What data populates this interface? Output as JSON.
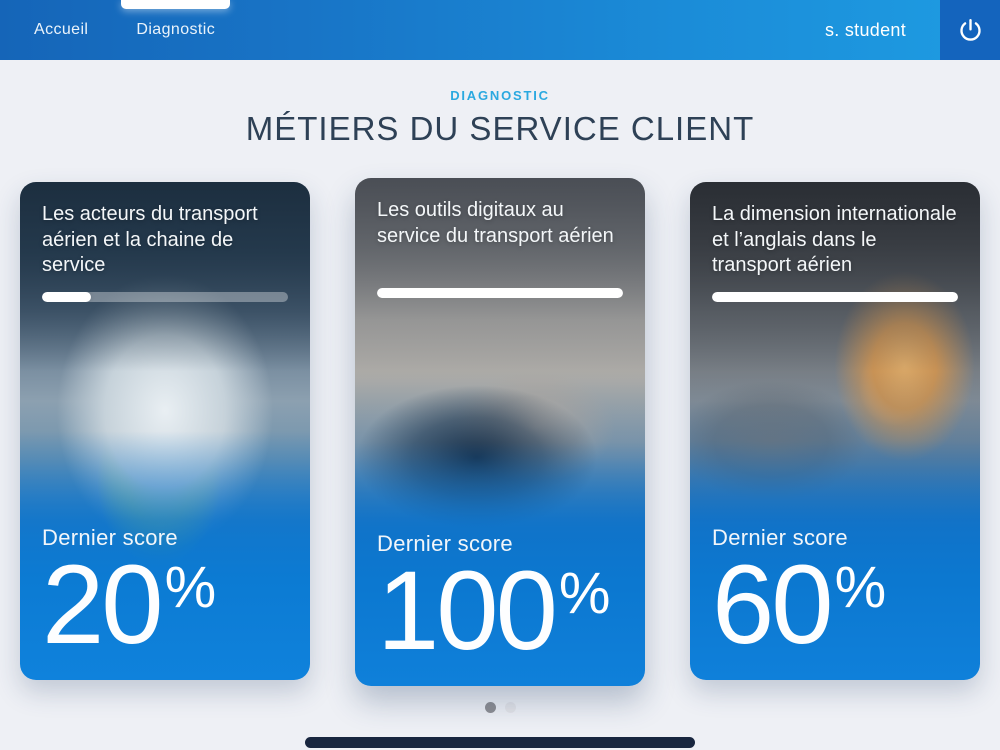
{
  "header": {
    "tabs": [
      {
        "label": "Accueil",
        "active": false
      },
      {
        "label": "Diagnostic",
        "active": true
      }
    ],
    "user_name": "s. student",
    "power_icon": "power-icon"
  },
  "page": {
    "eyebrow": "DIAGNOSTIC",
    "title": "MÉTIERS DU SERVICE CLIENT"
  },
  "cards": [
    {
      "title": "Les acteurs du transport aérien et la chaine de service",
      "progress_percent": 20,
      "score_label": "Dernier score",
      "score_value": "20",
      "score_unit": "%",
      "photo": "ground-crew-agent-in-front-of-airplane"
    },
    {
      "title": "Les outils digitaux au service du transport aérien",
      "progress_percent": 100,
      "score_label": "Dernier score",
      "score_value": "100",
      "score_unit": "%",
      "photo": "hand-using-tablet-device"
    },
    {
      "title": "La dimension internationale et l’anglais dans le transport aérien",
      "progress_percent": 100,
      "score_label": "Dernier score",
      "score_value": "60",
      "score_unit": "%",
      "photo": "smiling-airport-desk-agent"
    }
  ],
  "carousel": {
    "dot_count": 2,
    "active_dot_index": 0
  },
  "colors": {
    "header_gradient_left": "#1565B8",
    "header_gradient_right": "#1E9CE2",
    "power_block_blue": "#1464BD",
    "eyebrow_blue": "#2BA9E0",
    "title_navy": "#2E4156",
    "card_bottom_blue": "#0C7BD3",
    "page_background": "#EEF0F5",
    "home_indicator_navy": "#18263F"
  }
}
